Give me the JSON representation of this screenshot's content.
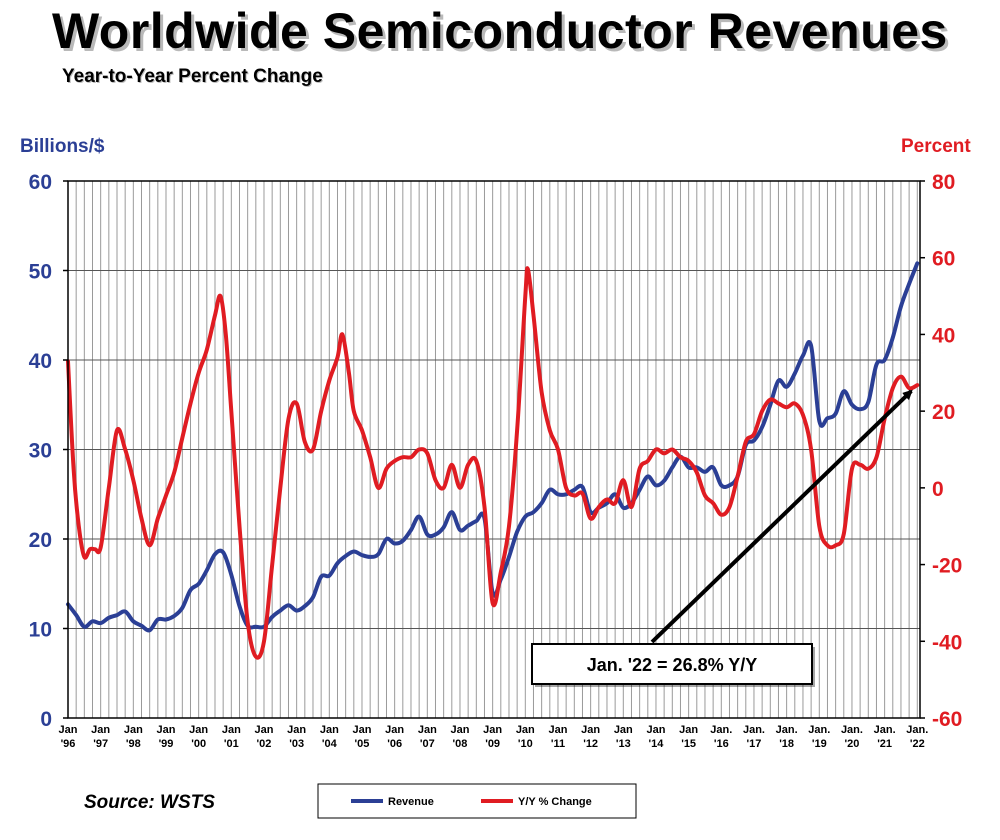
{
  "title": "Worldwide Semiconductor Revenues",
  "subtitle": "Year-to-Year Percent Change",
  "source": "Source: WSTS",
  "colors": {
    "revenue": "#2b3f95",
    "yy": "#e01c22",
    "grid": "#9a9a9a",
    "frame": "#000000"
  },
  "chart_data": {
    "type": "line",
    "y_left_label": "Billions/$",
    "y_right_label": "Percent",
    "y_left_range": [
      0,
      60
    ],
    "y_left_ticks": [
      "0",
      "10",
      "20",
      "30",
      "40",
      "50",
      "60"
    ],
    "y_right_range": [
      -60,
      80
    ],
    "y_right_ticks": [
      "-60",
      "-40",
      "-20",
      "0",
      "20",
      "40",
      "60",
      "80"
    ],
    "x_range": [
      1996,
      2022.083
    ],
    "x_ticks": [
      {
        "top": "Jan",
        "bottom": "'96"
      },
      {
        "top": "Jan",
        "bottom": "'97"
      },
      {
        "top": "Jan",
        "bottom": "'98"
      },
      {
        "top": "Jan",
        "bottom": "'99"
      },
      {
        "top": "Jan",
        "bottom": "'00"
      },
      {
        "top": "Jan",
        "bottom": "'01"
      },
      {
        "top": "Jan",
        "bottom": "'02"
      },
      {
        "top": "Jan",
        "bottom": "'03"
      },
      {
        "top": "Jan",
        "bottom": "'04"
      },
      {
        "top": "Jan",
        "bottom": "'05"
      },
      {
        "top": "Jan",
        "bottom": "'06"
      },
      {
        "top": "Jan",
        "bottom": "'07"
      },
      {
        "top": "Jan",
        "bottom": "'08"
      },
      {
        "top": "Jan",
        "bottom": "'09"
      },
      {
        "top": "Jan",
        "bottom": "'10"
      },
      {
        "top": "Jan",
        "bottom": "'11"
      },
      {
        "top": "Jan",
        "bottom": "'12"
      },
      {
        "top": "Jan",
        "bottom": "'13"
      },
      {
        "top": "Jan",
        "bottom": "'14"
      },
      {
        "top": "Jan",
        "bottom": "'15"
      },
      {
        "top": "Jan.",
        "bottom": "'16"
      },
      {
        "top": "Jan.",
        "bottom": "'17"
      },
      {
        "top": "Jan.",
        "bottom": "'18"
      },
      {
        "top": "Jan.",
        "bottom": "'19"
      },
      {
        "top": "Jan.",
        "bottom": "'20"
      },
      {
        "top": "Jan.",
        "bottom": "'21"
      },
      {
        "top": "Jan.",
        "bottom": "'22"
      }
    ],
    "grid": true,
    "series": [
      {
        "name": "Revenue",
        "axis": "left",
        "points": [
          [
            1996.0,
            12.7
          ],
          [
            1996.25,
            11.5
          ],
          [
            1996.5,
            10.2
          ],
          [
            1996.75,
            10.8
          ],
          [
            1997.0,
            10.6
          ],
          [
            1997.25,
            11.2
          ],
          [
            1997.5,
            11.5
          ],
          [
            1997.75,
            11.9
          ],
          [
            1998.0,
            10.8
          ],
          [
            1998.25,
            10.3
          ],
          [
            1998.5,
            9.8
          ],
          [
            1998.75,
            11.0
          ],
          [
            1999.0,
            11.0
          ],
          [
            1999.25,
            11.4
          ],
          [
            1999.5,
            12.3
          ],
          [
            1999.75,
            14.3
          ],
          [
            2000.0,
            15.0
          ],
          [
            2000.25,
            16.5
          ],
          [
            2000.5,
            18.3
          ],
          [
            2000.75,
            18.5
          ],
          [
            2001.0,
            16.0
          ],
          [
            2001.25,
            12.5
          ],
          [
            2001.5,
            10.3
          ],
          [
            2001.75,
            10.2
          ],
          [
            2002.0,
            10.2
          ],
          [
            2002.25,
            11.3
          ],
          [
            2002.5,
            12.0
          ],
          [
            2002.75,
            12.6
          ],
          [
            2003.0,
            12.0
          ],
          [
            2003.25,
            12.5
          ],
          [
            2003.5,
            13.5
          ],
          [
            2003.75,
            15.8
          ],
          [
            2004.0,
            15.9
          ],
          [
            2004.25,
            17.3
          ],
          [
            2004.5,
            18.1
          ],
          [
            2004.75,
            18.6
          ],
          [
            2005.0,
            18.2
          ],
          [
            2005.25,
            18.0
          ],
          [
            2005.5,
            18.3
          ],
          [
            2005.75,
            20.0
          ],
          [
            2006.0,
            19.5
          ],
          [
            2006.25,
            19.8
          ],
          [
            2006.5,
            21.0
          ],
          [
            2006.75,
            22.5
          ],
          [
            2007.0,
            20.5
          ],
          [
            2007.25,
            20.5
          ],
          [
            2007.5,
            21.3
          ],
          [
            2007.75,
            23.0
          ],
          [
            2008.0,
            21.0
          ],
          [
            2008.25,
            21.5
          ],
          [
            2008.5,
            22.0
          ],
          [
            2008.75,
            22.3
          ],
          [
            2009.0,
            14.0
          ],
          [
            2009.25,
            15.5
          ],
          [
            2009.5,
            18.0
          ],
          [
            2009.75,
            20.8
          ],
          [
            2010.0,
            22.5
          ],
          [
            2010.25,
            23.0
          ],
          [
            2010.5,
            24.0
          ],
          [
            2010.75,
            25.5
          ],
          [
            2011.0,
            25.0
          ],
          [
            2011.25,
            25.0
          ],
          [
            2011.5,
            25.5
          ],
          [
            2011.75,
            25.8
          ],
          [
            2012.0,
            23.0
          ],
          [
            2012.25,
            23.5
          ],
          [
            2012.5,
            24.0
          ],
          [
            2012.75,
            25.0
          ],
          [
            2013.0,
            23.5
          ],
          [
            2013.25,
            24.0
          ],
          [
            2013.5,
            25.5
          ],
          [
            2013.75,
            27.0
          ],
          [
            2014.0,
            26.0
          ],
          [
            2014.25,
            26.5
          ],
          [
            2014.5,
            28.0
          ],
          [
            2014.75,
            29.2
          ],
          [
            2015.0,
            28.0
          ],
          [
            2015.25,
            28.0
          ],
          [
            2015.5,
            27.5
          ],
          [
            2015.75,
            28.0
          ],
          [
            2016.0,
            26.0
          ],
          [
            2016.25,
            26.0
          ],
          [
            2016.5,
            27.0
          ],
          [
            2016.75,
            30.5
          ],
          [
            2017.0,
            31.0
          ],
          [
            2017.25,
            32.5
          ],
          [
            2017.5,
            35.0
          ],
          [
            2017.75,
            37.7
          ],
          [
            2018.0,
            37.0
          ],
          [
            2018.25,
            38.5
          ],
          [
            2018.5,
            40.5
          ],
          [
            2018.75,
            41.6
          ],
          [
            2019.0,
            33.2
          ],
          [
            2019.25,
            33.5
          ],
          [
            2019.5,
            34.0
          ],
          [
            2019.75,
            36.5
          ],
          [
            2020.0,
            35.0
          ],
          [
            2020.25,
            34.5
          ],
          [
            2020.5,
            35.3
          ],
          [
            2020.75,
            39.5
          ],
          [
            2021.0,
            40.0
          ],
          [
            2021.25,
            42.5
          ],
          [
            2021.5,
            46.0
          ],
          [
            2021.75,
            48.5
          ],
          [
            2022.0,
            50.8
          ]
        ]
      },
      {
        "name": "Y/Y % Change",
        "axis": "right",
        "points": [
          [
            1996.0,
            33.0
          ],
          [
            1996.17,
            5.0
          ],
          [
            1996.33,
            -10.0
          ],
          [
            1996.5,
            -18.0
          ],
          [
            1996.67,
            -16.0
          ],
          [
            1996.83,
            -16.0
          ],
          [
            1997.0,
            -15.5
          ],
          [
            1997.25,
            0.0
          ],
          [
            1997.5,
            15.0
          ],
          [
            1997.75,
            10.0
          ],
          [
            1998.0,
            2.0
          ],
          [
            1998.25,
            -8.0
          ],
          [
            1998.5,
            -15.0
          ],
          [
            1998.75,
            -8.0
          ],
          [
            1999.0,
            -2.0
          ],
          [
            1999.25,
            4.0
          ],
          [
            1999.5,
            13.0
          ],
          [
            1999.75,
            22.0
          ],
          [
            2000.0,
            30.0
          ],
          [
            2000.25,
            36.0
          ],
          [
            2000.5,
            45.0
          ],
          [
            2000.67,
            50.0
          ],
          [
            2000.83,
            40.0
          ],
          [
            2001.0,
            20.0
          ],
          [
            2001.25,
            -10.0
          ],
          [
            2001.5,
            -35.0
          ],
          [
            2001.75,
            -44.0
          ],
          [
            2002.0,
            -40.0
          ],
          [
            2002.25,
            -20.0
          ],
          [
            2002.5,
            0.0
          ],
          [
            2002.75,
            18.0
          ],
          [
            2003.0,
            22.0
          ],
          [
            2003.25,
            12.0
          ],
          [
            2003.5,
            10.0
          ],
          [
            2003.75,
            20.0
          ],
          [
            2004.0,
            28.0
          ],
          [
            2004.25,
            34.0
          ],
          [
            2004.4,
            40.0
          ],
          [
            2004.6,
            30.0
          ],
          [
            2004.75,
            20.0
          ],
          [
            2005.0,
            15.0
          ],
          [
            2005.25,
            8.0
          ],
          [
            2005.5,
            0.0
          ],
          [
            2005.75,
            5.0
          ],
          [
            2006.0,
            7.0
          ],
          [
            2006.25,
            8.0
          ],
          [
            2006.5,
            8.0
          ],
          [
            2006.75,
            10.0
          ],
          [
            2007.0,
            9.0
          ],
          [
            2007.25,
            2.0
          ],
          [
            2007.5,
            0.0
          ],
          [
            2007.75,
            6.0
          ],
          [
            2008.0,
            0.0
          ],
          [
            2008.25,
            6.0
          ],
          [
            2008.5,
            7.0
          ],
          [
            2008.75,
            -5.0
          ],
          [
            2009.0,
            -30.0
          ],
          [
            2009.25,
            -22.0
          ],
          [
            2009.5,
            -10.0
          ],
          [
            2009.75,
            15.0
          ],
          [
            2010.0,
            50.0
          ],
          [
            2010.08,
            57.0
          ],
          [
            2010.25,
            45.0
          ],
          [
            2010.5,
            25.0
          ],
          [
            2010.75,
            15.0
          ],
          [
            2011.0,
            10.0
          ],
          [
            2011.25,
            0.0
          ],
          [
            2011.5,
            -2.0
          ],
          [
            2011.75,
            -1.5
          ],
          [
            2012.0,
            -8.0
          ],
          [
            2012.25,
            -5.0
          ],
          [
            2012.5,
            -3.0
          ],
          [
            2012.75,
            -4.0
          ],
          [
            2013.0,
            2.0
          ],
          [
            2013.25,
            -5.0
          ],
          [
            2013.5,
            5.0
          ],
          [
            2013.75,
            7.0
          ],
          [
            2014.0,
            10.0
          ],
          [
            2014.25,
            9.0
          ],
          [
            2014.5,
            10.0
          ],
          [
            2014.75,
            8.0
          ],
          [
            2015.0,
            7.0
          ],
          [
            2015.25,
            4.0
          ],
          [
            2015.5,
            -2.0
          ],
          [
            2015.75,
            -4.0
          ],
          [
            2016.0,
            -7.0
          ],
          [
            2016.25,
            -5.0
          ],
          [
            2016.5,
            3.0
          ],
          [
            2016.75,
            12.0
          ],
          [
            2017.0,
            14.0
          ],
          [
            2017.25,
            20.0
          ],
          [
            2017.5,
            23.0
          ],
          [
            2017.75,
            22.0
          ],
          [
            2018.0,
            21.0
          ],
          [
            2018.25,
            22.0
          ],
          [
            2018.5,
            19.0
          ],
          [
            2018.75,
            10.0
          ],
          [
            2019.0,
            -10.0
          ],
          [
            2019.25,
            -15.0
          ],
          [
            2019.5,
            -15.0
          ],
          [
            2019.75,
            -12.0
          ],
          [
            2020.0,
            5.0
          ],
          [
            2020.25,
            6.0
          ],
          [
            2020.5,
            5.0
          ],
          [
            2020.75,
            8.0
          ],
          [
            2021.0,
            18.0
          ],
          [
            2021.25,
            26.0
          ],
          [
            2021.5,
            29.0
          ],
          [
            2021.75,
            26.0
          ],
          [
            2022.0,
            26.8
          ]
        ]
      }
    ],
    "legend": {
      "placement": "bottom-center",
      "items": [
        {
          "label": "Revenue",
          "color": "#2b3f95"
        },
        {
          "label": "Y/Y % Change",
          "color": "#e01c22"
        }
      ]
    },
    "annotation": {
      "text": "Jan. '22 = 26.8% Y/Y",
      "target": [
        2022.0,
        26.8
      ],
      "target_axis": "right"
    }
  }
}
